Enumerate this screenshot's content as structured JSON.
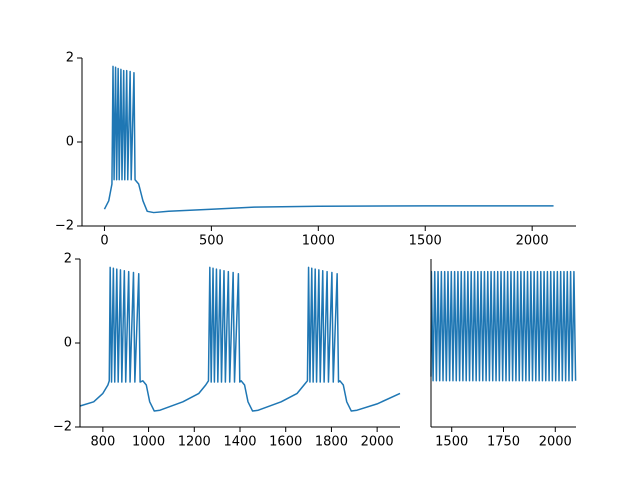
{
  "chart_data": [
    {
      "type": "line",
      "color": "#1f77b4",
      "x": [
        0,
        20,
        35,
        40,
        45,
        52,
        57,
        64,
        69,
        77,
        82,
        90,
        95,
        104,
        109,
        120,
        125,
        138,
        143,
        160,
        180,
        200,
        230,
        300,
        500,
        700,
        1000,
        1500,
        2100
      ],
      "values": [
        -1.6,
        -1.4,
        -1.0,
        1.8,
        -0.9,
        1.78,
        -0.9,
        1.75,
        -0.9,
        1.73,
        -0.9,
        1.7,
        -0.9,
        1.7,
        -0.9,
        1.68,
        -0.9,
        1.65,
        -0.9,
        -1.0,
        -1.4,
        -1.65,
        -1.68,
        -1.65,
        -1.6,
        -1.55,
        -1.53,
        -1.52,
        -1.52
      ],
      "xlim": [
        -105,
        2205
      ],
      "ylim": [
        -2,
        2
      ],
      "xticks": [
        0,
        500,
        1000,
        1500,
        2000
      ],
      "yticks": [
        {
          "value": -2,
          "label": "−2"
        },
        0,
        2
      ]
    },
    {
      "type": "line",
      "color": "#1f77b4",
      "x": [
        700,
        760,
        800,
        822,
        828,
        832,
        838,
        846,
        852,
        861,
        867,
        877,
        883,
        894,
        900,
        913,
        919,
        934,
        940,
        957,
        963,
        975,
        990,
        1005,
        1025,
        1050,
        1150,
        1220,
        1250,
        1262,
        1268,
        1274,
        1282,
        1288,
        1297,
        1303,
        1313,
        1319,
        1330,
        1336,
        1349,
        1355,
        1370,
        1376,
        1393,
        1399,
        1405,
        1420,
        1435,
        1455,
        1480,
        1580,
        1650,
        1680,
        1695,
        1700,
        1706,
        1714,
        1720,
        1729,
        1735,
        1745,
        1751,
        1762,
        1768,
        1781,
        1787,
        1802,
        1808,
        1825,
        1831,
        1837,
        1852,
        1867,
        1887,
        1912,
        2000,
        2100
      ],
      "values": [
        -1.5,
        -1.4,
        -1.2,
        -1.0,
        -0.9,
        1.8,
        -0.93,
        1.78,
        -0.93,
        1.76,
        -0.93,
        1.74,
        -0.93,
        1.72,
        -0.93,
        1.7,
        -0.93,
        1.68,
        -0.93,
        1.65,
        -0.93,
        -0.9,
        -1.0,
        -1.4,
        -1.62,
        -1.6,
        -1.4,
        -1.2,
        -1.0,
        -0.9,
        1.8,
        -0.93,
        1.78,
        -0.93,
        1.76,
        -0.93,
        1.74,
        -0.93,
        1.72,
        -0.93,
        1.7,
        -0.93,
        1.68,
        -0.93,
        1.65,
        -0.93,
        -0.9,
        -1.0,
        -1.4,
        -1.62,
        -1.6,
        -1.4,
        -1.2,
        -1.0,
        -0.9,
        1.8,
        -0.93,
        1.78,
        -0.93,
        1.76,
        -0.93,
        1.74,
        -0.93,
        1.72,
        -0.93,
        1.7,
        -0.93,
        1.68,
        -0.93,
        1.65,
        -0.93,
        -0.9,
        -1.0,
        -1.4,
        -1.62,
        -1.6,
        -1.45,
        -1.2
      ],
      "xlim": [
        700,
        2100
      ],
      "ylim": [
        -2,
        2
      ],
      "xticks": [
        800,
        1000,
        1200,
        1400,
        1600,
        1800,
        2000
      ],
      "yticks": [
        {
          "value": -2,
          "label": "−2"
        },
        0,
        2
      ]
    },
    {
      "type": "line",
      "color": "#1f77b4",
      "x": [
        1400,
        1402,
        1410,
        1418,
        1426,
        1434,
        1442,
        1450,
        1458,
        1466,
        1474,
        1482,
        1490,
        1498,
        1506,
        1514,
        1522,
        1530,
        1538,
        1546,
        1554,
        1562,
        1570,
        1578,
        1586,
        1594,
        1602,
        1610,
        1618,
        1626,
        1634,
        1642,
        1650,
        1658,
        1666,
        1674,
        1682,
        1690,
        1698,
        1706,
        1714,
        1722,
        1730,
        1738,
        1746,
        1754,
        1762,
        1770,
        1778,
        1786,
        1794,
        1802,
        1810,
        1818,
        1826,
        1834,
        1842,
        1850,
        1858,
        1866,
        1874,
        1882,
        1890,
        1898,
        1906,
        1914,
        1922,
        1930,
        1938,
        1946,
        1954,
        1962,
        1970,
        1978,
        1986,
        1994,
        2002,
        2010,
        2018,
        2026,
        2034,
        2042,
        2050,
        2058,
        2066,
        2074,
        2082,
        2090,
        2098
      ],
      "values": [
        -0.8,
        1.7,
        -0.9,
        1.7,
        -0.9,
        1.7,
        -0.9,
        1.7,
        -0.9,
        1.7,
        -0.9,
        1.7,
        -0.9,
        1.7,
        -0.9,
        1.7,
        -0.9,
        1.7,
        -0.9,
        1.7,
        -0.9,
        1.7,
        -0.9,
        1.7,
        -0.9,
        1.7,
        -0.9,
        1.7,
        -0.9,
        1.7,
        -0.9,
        1.7,
        -0.9,
        1.7,
        -0.9,
        1.7,
        -0.9,
        1.7,
        -0.9,
        1.7,
        -0.9,
        1.7,
        -0.9,
        1.7,
        -0.9,
        1.7,
        -0.9,
        1.7,
        -0.9,
        1.7,
        -0.9,
        1.7,
        -0.9,
        1.7,
        -0.9,
        1.7,
        -0.9,
        1.7,
        -0.9,
        1.7,
        -0.9,
        1.7,
        -0.9,
        1.7,
        -0.9,
        1.7,
        -0.9,
        1.7,
        -0.9,
        1.7,
        -0.9,
        1.7,
        -0.9,
        1.7,
        -0.9,
        1.7,
        -0.9,
        1.7,
        -0.9,
        1.7,
        -0.9,
        1.7,
        -0.9,
        1.7,
        -0.9,
        1.7,
        -0.9,
        1.7,
        -0.9
      ],
      "xlim": [
        1400,
        2100
      ],
      "ylim": [
        -2,
        2
      ],
      "xticks": [
        1500,
        1750,
        2000
      ]
    }
  ]
}
